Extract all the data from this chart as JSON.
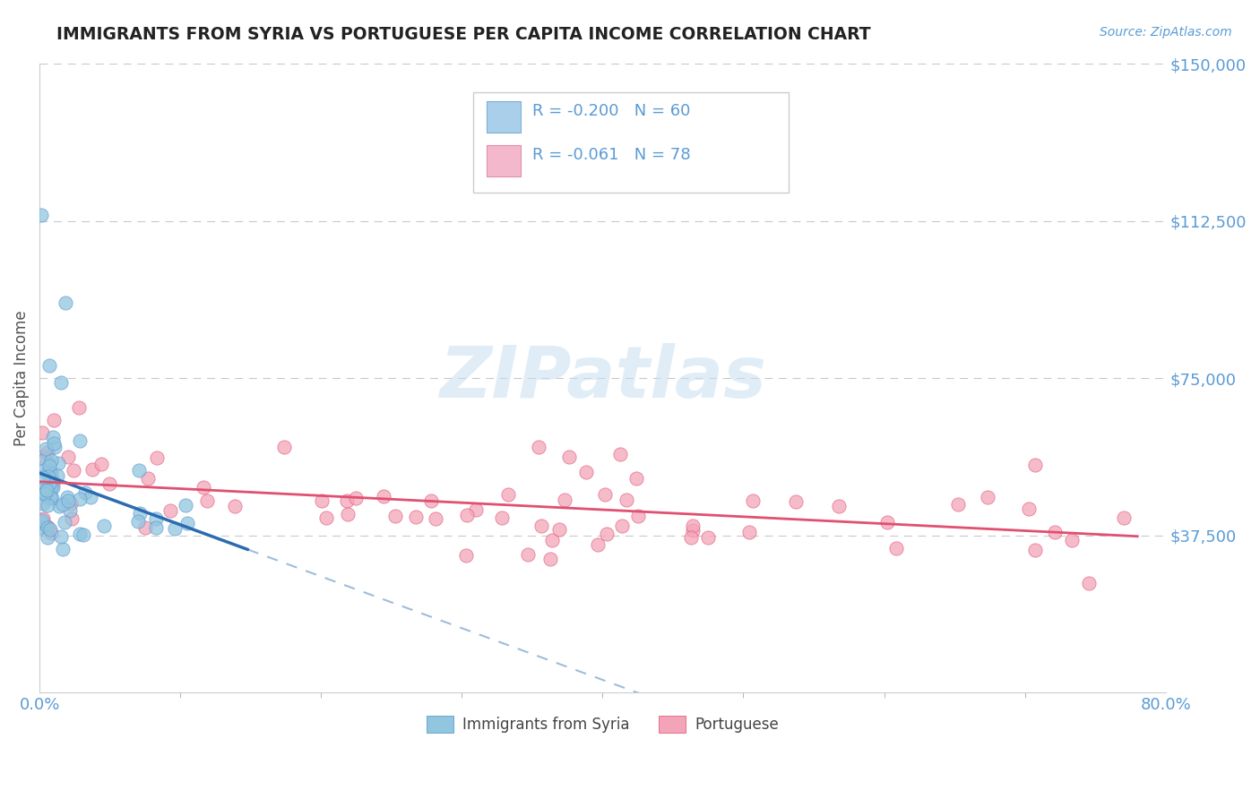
{
  "title": "IMMIGRANTS FROM SYRIA VS PORTUGUESE PER CAPITA INCOME CORRELATION CHART",
  "source": "Source: ZipAtlas.com",
  "ylabel": "Per Capita Income",
  "xlim": [
    0.0,
    0.8
  ],
  "ylim": [
    0,
    150000
  ],
  "ytick_vals": [
    37500,
    75000,
    112500,
    150000
  ],
  "legend_R1": "-0.200",
  "legend_N1": "60",
  "legend_R2": "-0.061",
  "legend_N2": "78",
  "series1_color": "#92c5de",
  "series1_edge": "#5b9bd5",
  "series2_color": "#f4a4b8",
  "series2_edge": "#e06080",
  "trendline1_color": "#2b6cb0",
  "trendline2_color": "#e05070",
  "watermark_color": "#c8dff0",
  "title_color": "#222222",
  "axis_tick_color": "#5b9bd5",
  "ylabel_color": "#555555",
  "grid_color": "#bbbbbb",
  "legend_box_color": "#cccccc",
  "source_color": "#5b9bd5"
}
